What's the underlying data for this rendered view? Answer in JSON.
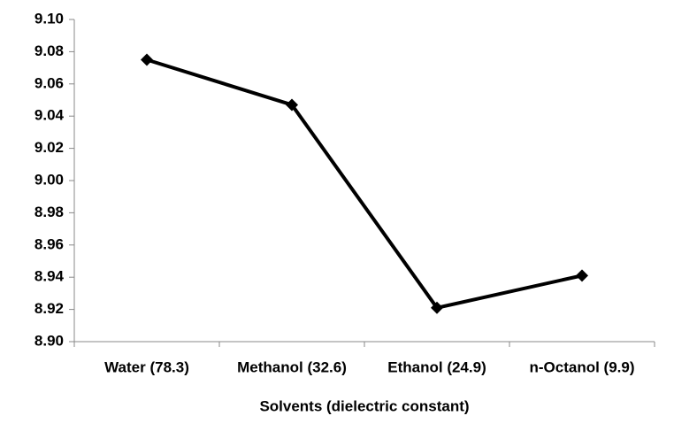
{
  "chart_data": {
    "type": "line",
    "x_label": "Solvents (dielectric constant)",
    "categories": [
      "Water (78.3)",
      "Methanol (32.6)",
      "Ethanol (24.9)",
      "n-Octanol (9.9)"
    ],
    "series": [
      {
        "color": "#000000",
        "values": [
          9.075,
          9.047,
          8.921,
          8.941
        ]
      }
    ],
    "ylim": [
      8.9,
      9.1
    ],
    "yticks": [
      {
        "value": 8.9,
        "label": "8.90"
      },
      8.92,
      8.94,
      8.96,
      8.98,
      {
        "value": 9.0,
        "label": "9.00"
      },
      9.02,
      9.04,
      9.06,
      9.08,
      {
        "value": 9.1,
        "label": "9.10"
      }
    ],
    "grid": false
  }
}
